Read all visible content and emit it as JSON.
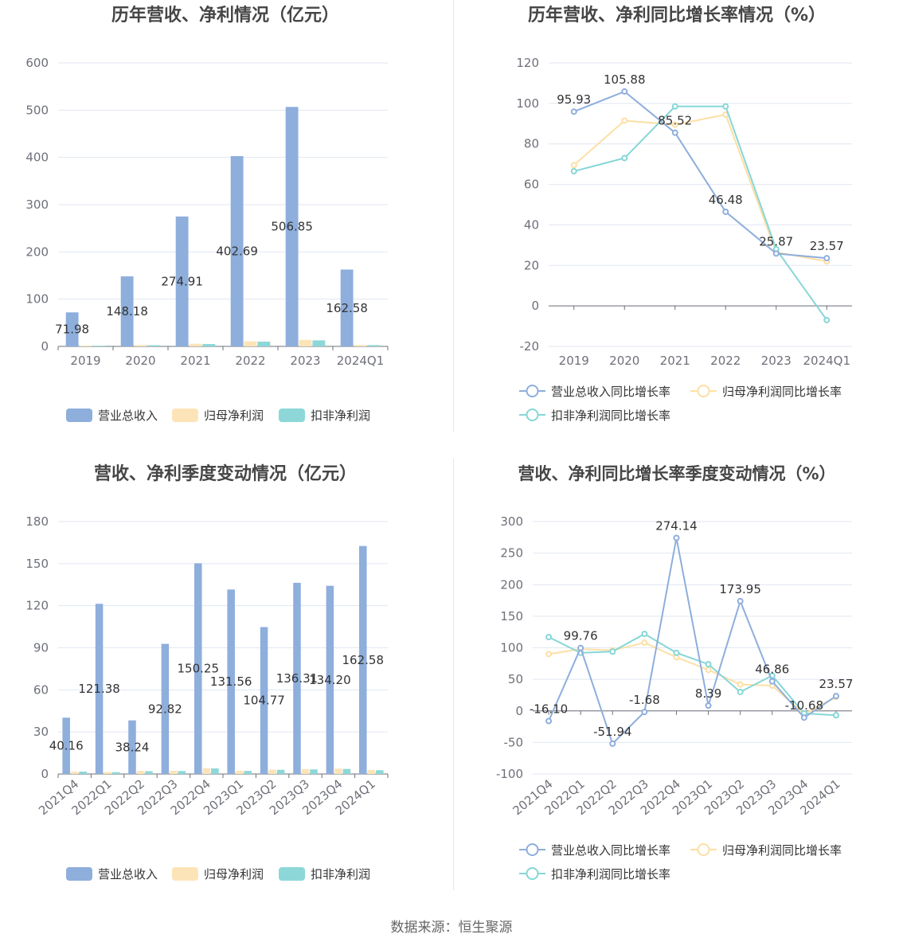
{
  "source": "数据来源：恒生聚源",
  "colors": {
    "revenue": "#8eaedc",
    "net_profit": "#fde4b8",
    "deducted_profit": "#8dd7d8",
    "revenue_line": "#8eaedc",
    "net_profit_line": "#fddfa5",
    "deducted_profit_line": "#86d6d6"
  },
  "chart_data": [
    {
      "id": "annual-bar",
      "type": "bar",
      "title": "历年营收、净利情况（亿元）",
      "categories": [
        "2019",
        "2020",
        "2021",
        "2022",
        "2023",
        "2024Q1"
      ],
      "ylim": [
        0,
        600
      ],
      "yticks": [
        0,
        100,
        200,
        300,
        400,
        500,
        600
      ],
      "legend_position": "bottom",
      "series": [
        {
          "name": "营业总收入",
          "values": [
            71.98,
            148.18,
            274.91,
            402.69,
            506.85,
            162.58
          ],
          "labels": [
            "71.98",
            "148.18",
            "274.91",
            "402.69",
            "506.85",
            "162.58"
          ]
        },
        {
          "name": "归母净利润",
          "values": [
            1.5,
            3.0,
            5.6,
            10.9,
            13.8,
            2.9
          ]
        },
        {
          "name": "扣非净利润",
          "values": [
            1.4,
            2.5,
            5.0,
            10.0,
            12.8,
            2.7
          ]
        }
      ]
    },
    {
      "id": "annual-line",
      "type": "line",
      "title": "历年营收、净利同比增长率情况（%）",
      "categories": [
        "2019",
        "2020",
        "2021",
        "2022",
        "2023",
        "2024Q1"
      ],
      "ylim": [
        -20,
        120
      ],
      "yticks": [
        -20,
        0,
        20,
        40,
        60,
        80,
        100,
        120
      ],
      "legend_position": "bottom",
      "series": [
        {
          "name": "营业总收入同比增长率",
          "values": [
            95.93,
            105.88,
            85.52,
            46.48,
            25.87,
            23.57
          ],
          "labels": [
            "95.93",
            "105.88",
            "85.52",
            "46.48",
            "25.87",
            "23.57"
          ]
        },
        {
          "name": "归母净利润同比增长率",
          "values": [
            69.5,
            91.5,
            89.5,
            94.5,
            26.5,
            22.0
          ]
        },
        {
          "name": "扣非净利润同比增长率",
          "values": [
            66.5,
            73.0,
            98.5,
            98.5,
            28.0,
            -7.0
          ]
        }
      ]
    },
    {
      "id": "quarterly-bar",
      "type": "bar",
      "title": "营收、净利季度变动情况（亿元）",
      "categories": [
        "2021Q4",
        "2022Q1",
        "2022Q2",
        "2022Q3",
        "2022Q4",
        "2023Q1",
        "2023Q2",
        "2023Q3",
        "2023Q4",
        "2024Q1"
      ],
      "ylim": [
        0,
        180
      ],
      "yticks": [
        0,
        30,
        60,
        90,
        120,
        150,
        180
      ],
      "legend_position": "bottom",
      "series": [
        {
          "name": "营业总收入",
          "values": [
            40.16,
            121.38,
            38.24,
            92.82,
            150.25,
            131.56,
            104.77,
            136.31,
            134.2,
            162.58
          ],
          "labels": [
            "40.16",
            "121.38",
            "38.24",
            "92.82",
            "150.25",
            "131.56",
            "104.77",
            "136.31",
            "134.20",
            "162.58"
          ]
        },
        {
          "name": "归母净利润",
          "values": [
            1.8,
            1.4,
            2.2,
            2.3,
            4.2,
            2.3,
            3.1,
            3.5,
            3.9,
            2.9
          ]
        },
        {
          "name": "扣非净利润",
          "values": [
            1.7,
            1.3,
            2.0,
            2.1,
            4.0,
            2.2,
            3.0,
            3.3,
            3.6,
            2.7
          ]
        }
      ]
    },
    {
      "id": "quarterly-line",
      "type": "line",
      "title": "营收、净利同比增长率季度变动情况（%）",
      "categories": [
        "2021Q4",
        "2022Q1",
        "2022Q2",
        "2022Q3",
        "2022Q4",
        "2023Q1",
        "2023Q2",
        "2023Q3",
        "2023Q4",
        "2024Q1"
      ],
      "ylim": [
        -100,
        300
      ],
      "yticks": [
        -100,
        -50,
        0,
        50,
        100,
        150,
        200,
        250,
        300
      ],
      "legend_position": "bottom",
      "series": [
        {
          "name": "营业总收入同比增长率",
          "values": [
            -16.1,
            99.76,
            -51.94,
            -1.68,
            274.14,
            8.39,
            173.95,
            46.86,
            -10.68,
            23.57
          ],
          "labels": [
            "-16.10",
            "99.76",
            "-51.94",
            "-1.68",
            "274.14",
            "8.39",
            "173.95",
            "46.86",
            "-10.68",
            "23.57"
          ]
        },
        {
          "name": "归母净利润同比增长率",
          "values": [
            90,
            98,
            96,
            108,
            85,
            65,
            42,
            40,
            -5,
            22
          ]
        },
        {
          "name": "扣非净利润同比增长率",
          "values": [
            117,
            92,
            94,
            122,
            92,
            74,
            30,
            56,
            -4,
            -7
          ]
        }
      ]
    }
  ]
}
